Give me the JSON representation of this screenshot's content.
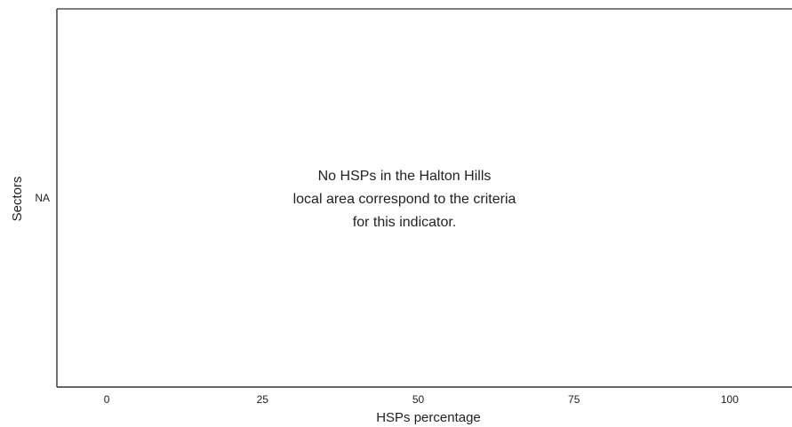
{
  "chart_data": {
    "type": "bar",
    "orientation": "horizontal",
    "title": "",
    "xlabel": "HSPs percentage",
    "ylabel": "Sectors",
    "categories": [
      "NA"
    ],
    "series": [],
    "xlim": [
      -8,
      110
    ],
    "xticks": [
      "0",
      "25",
      "50",
      "75",
      "100"
    ],
    "grid": false,
    "legend": "none",
    "annotation": [
      "No HSPs in the Halton Hills",
      "local area correspond to the criteria",
      "for this indicator."
    ]
  }
}
